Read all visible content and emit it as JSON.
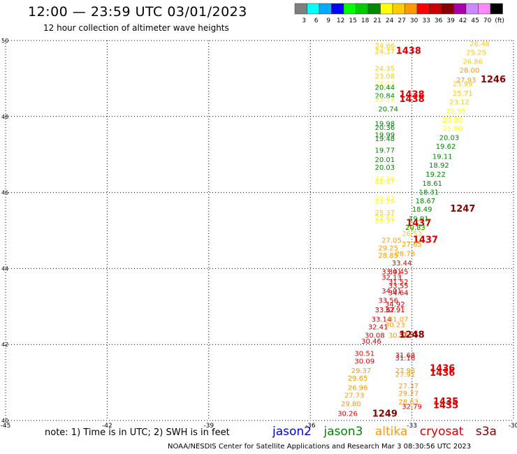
{
  "header": {
    "title": "12:00 — 23:59 UTC 03/01/2023",
    "subtitle": "12 hour collection of altimeter wave heights"
  },
  "color_scale": {
    "colors": [
      "#7f7f7f",
      "#00ffff",
      "#00aaff",
      "#0000ff",
      "#00ff00",
      "#00cc00",
      "#008800",
      "#ffff00",
      "#ffcc00",
      "#ff9900",
      "#ff0000",
      "#cc0000",
      "#880000",
      "#aa00aa",
      "#cc88ff",
      "#ff88ff",
      "#000000"
    ],
    "labels": [
      "3",
      "6",
      "9",
      "12",
      "15",
      "18",
      "21",
      "24",
      "27",
      "30",
      "33",
      "36",
      "39",
      "42",
      "45",
      "70",
      "(ft)"
    ]
  },
  "footer": {
    "note": "note: 1) Time is in UTC; 2) SWH is in feet",
    "missions": [
      {
        "name": "jason2",
        "color": "#0000cc"
      },
      {
        "name": "jason3",
        "color": "#008800"
      },
      {
        "name": "altika",
        "color": "#ff9900"
      },
      {
        "name": "cryosat",
        "color": "#dd0000"
      },
      {
        "name": "s3a",
        "color": "#880000"
      }
    ],
    "credit": "NOAA/NESDIS Center for Satellite Applications and Research   Mar  3 08:30:56 UTC 2023"
  },
  "chart_data": {
    "type": "scatter",
    "xlim": [
      -45,
      -30
    ],
    "ylim": [
      40,
      50
    ],
    "x_ticks": [
      "-45",
      "-42",
      "-39",
      "-36",
      "-33",
      "-30"
    ],
    "y_ticks": [
      "40",
      "42",
      "44",
      "46",
      "48",
      "50"
    ],
    "grid": true,
    "points": [
      {
        "x": -33.8,
        "y": 49.8,
        "t": "24.66",
        "c": "#ffcc00"
      },
      {
        "x": -33.8,
        "y": 49.65,
        "t": "24.37",
        "c": "#ffcc00"
      },
      {
        "x": -33.1,
        "y": 49.65,
        "t": "1438",
        "c": "#dd0000",
        "big": true
      },
      {
        "x": -33.8,
        "y": 49.2,
        "t": "24.35",
        "c": "#ffcc00"
      },
      {
        "x": -33.8,
        "y": 49.0,
        "t": "23.08",
        "c": "#ffcc00"
      },
      {
        "x": -33.8,
        "y": 48.8,
        "t": "22.13",
        "c": "#ffff00"
      },
      {
        "x": -33.8,
        "y": 48.7,
        "t": "20.44",
        "c": "#008800"
      },
      {
        "x": -33.8,
        "y": 48.48,
        "t": "20.84",
        "c": "#008800"
      },
      {
        "x": -33.8,
        "y": 48.38,
        "t": "22.14",
        "c": "#ffff00"
      },
      {
        "x": -33.0,
        "y": 48.5,
        "t": "1438",
        "c": "#dd0000",
        "big": true
      },
      {
        "x": -33.0,
        "y": 48.38,
        "t": "1438",
        "c": "#dd0000",
        "big": true
      },
      {
        "x": -33.7,
        "y": 48.13,
        "t": "20.74",
        "c": "#008800"
      },
      {
        "x": -33.8,
        "y": 47.75,
        "t": "19.98",
        "c": "#008800"
      },
      {
        "x": -33.8,
        "y": 47.65,
        "t": "20.36",
        "c": "#008800"
      },
      {
        "x": -33.8,
        "y": 47.45,
        "t": "19.99",
        "c": "#008800"
      },
      {
        "x": -33.8,
        "y": 47.35,
        "t": "19.48",
        "c": "#008800"
      },
      {
        "x": -33.8,
        "y": 47.05,
        "t": "19.77",
        "c": "#008800"
      },
      {
        "x": -33.8,
        "y": 46.8,
        "t": "20.01",
        "c": "#008800"
      },
      {
        "x": -33.8,
        "y": 46.6,
        "t": "20.03",
        "c": "#008800"
      },
      {
        "x": -33.8,
        "y": 46.3,
        "t": "22.29",
        "c": "#ffff00"
      },
      {
        "x": -33.8,
        "y": 46.23,
        "t": "22.67",
        "c": "#ffff00"
      },
      {
        "x": -33.8,
        "y": 45.78,
        "t": "22.87",
        "c": "#ffff00"
      },
      {
        "x": -33.8,
        "y": 45.7,
        "t": "23.29",
        "c": "#ffff00"
      },
      {
        "x": -33.8,
        "y": 45.4,
        "t": "25.37",
        "c": "#ffcc00"
      },
      {
        "x": -33.8,
        "y": 45.28,
        "t": "22.61",
        "c": "#ffff00"
      },
      {
        "x": -33.8,
        "y": 45.18,
        "t": "22.37",
        "c": "#ffff00"
      },
      {
        "x": -32.8,
        "y": 45.12,
        "t": "1437",
        "c": "#dd0000",
        "big": true
      },
      {
        "x": -32.9,
        "y": 45.0,
        "t": "24.73",
        "c": "#ffff00"
      },
      {
        "x": -33.0,
        "y": 44.85,
        "t": "26.53",
        "c": "#ffcc00"
      },
      {
        "x": -32.6,
        "y": 44.68,
        "t": "1437",
        "c": "#dd0000",
        "big": true
      },
      {
        "x": -33.6,
        "y": 44.68,
        "t": "27.05",
        "c": "#ff9900"
      },
      {
        "x": -33.0,
        "y": 44.58,
        "t": "27.65",
        "c": "#ff9900"
      },
      {
        "x": -33.7,
        "y": 44.48,
        "t": "29.25",
        "c": "#ff9900"
      },
      {
        "x": -33.2,
        "y": 44.33,
        "t": "28.76",
        "c": "#ff9900"
      },
      {
        "x": -33.7,
        "y": 44.28,
        "t": "28.85",
        "c": "#ff9900"
      },
      {
        "x": -33.3,
        "y": 44.08,
        "t": "33.44",
        "c": "#cc0000"
      },
      {
        "x": -33.6,
        "y": 43.85,
        "t": "33.01",
        "c": "#cc0000"
      },
      {
        "x": -33.4,
        "y": 43.85,
        "t": "34.45",
        "c": "#dd0000"
      },
      {
        "x": -33.6,
        "y": 43.7,
        "t": "32.13",
        "c": "#cc0000"
      },
      {
        "x": -33.4,
        "y": 43.58,
        "t": "31.52",
        "c": "#dd0000"
      },
      {
        "x": -33.4,
        "y": 43.48,
        "t": "33.55",
        "c": "#cc0000"
      },
      {
        "x": -33.6,
        "y": 43.35,
        "t": "34.01",
        "c": "#cc0000"
      },
      {
        "x": -33.4,
        "y": 43.3,
        "t": "34.64",
        "c": "#cc0000"
      },
      {
        "x": -33.7,
        "y": 43.1,
        "t": "33.56",
        "c": "#cc0000"
      },
      {
        "x": -33.5,
        "y": 43.0,
        "t": "34.92",
        "c": "#cc0000"
      },
      {
        "x": -33.8,
        "y": 42.85,
        "t": "33.67",
        "c": "#cc0000"
      },
      {
        "x": -33.5,
        "y": 42.85,
        "t": "32.91",
        "c": "#cc0000"
      },
      {
        "x": -33.9,
        "y": 42.6,
        "t": "33.14",
        "c": "#cc0000"
      },
      {
        "x": -33.4,
        "y": 42.6,
        "t": "31.07",
        "c": "#ff9900"
      },
      {
        "x": -34.0,
        "y": 42.4,
        "t": "32.41",
        "c": "#cc0000"
      },
      {
        "x": -33.5,
        "y": 42.45,
        "t": "30.23",
        "c": "#ff9900"
      },
      {
        "x": -34.1,
        "y": 42.18,
        "t": "30.08",
        "c": "#cc0000"
      },
      {
        "x": -33.4,
        "y": 42.18,
        "t": "30.24",
        "c": "#ff9900"
      },
      {
        "x": -33.1,
        "y": 42.2,
        "t": "31.95",
        "c": "#dd0000"
      },
      {
        "x": -33.0,
        "y": 42.18,
        "t": "1248",
        "c": "#880000",
        "big": true
      },
      {
        "x": -34.2,
        "y": 42.02,
        "t": "30.46",
        "c": "#cc0000"
      },
      {
        "x": -34.4,
        "y": 41.7,
        "t": "30.51",
        "c": "#dd0000"
      },
      {
        "x": -33.2,
        "y": 41.65,
        "t": "31.68",
        "c": "#dd0000"
      },
      {
        "x": -33.2,
        "y": 41.58,
        "t": "31.16",
        "c": "#dd0000"
      },
      {
        "x": -34.4,
        "y": 41.5,
        "t": "30.09",
        "c": "#dd0000"
      },
      {
        "x": -34.5,
        "y": 41.25,
        "t": "29.37",
        "c": "#ff9900"
      },
      {
        "x": -33.2,
        "y": 41.25,
        "t": "27.96",
        "c": "#ff9900"
      },
      {
        "x": -33.2,
        "y": 41.15,
        "t": "27.91",
        "c": "#ff9900"
      },
      {
        "x": -32.1,
        "y": 41.3,
        "t": "1436",
        "c": "#dd0000",
        "big": true
      },
      {
        "x": -32.1,
        "y": 41.18,
        "t": "1436",
        "c": "#dd0000",
        "big": true
      },
      {
        "x": -34.6,
        "y": 41.05,
        "t": "29.65",
        "c": "#ff9900"
      },
      {
        "x": -34.6,
        "y": 40.8,
        "t": "26.96",
        "c": "#ff9900"
      },
      {
        "x": -33.1,
        "y": 40.85,
        "t": "27.37",
        "c": "#ff9900"
      },
      {
        "x": -33.1,
        "y": 40.65,
        "t": "29.27",
        "c": "#ff9900"
      },
      {
        "x": -34.7,
        "y": 40.6,
        "t": "27.73",
        "c": "#ff9900"
      },
      {
        "x": -33.1,
        "y": 40.42,
        "t": "28.63",
        "c": "#ff9900"
      },
      {
        "x": -32.0,
        "y": 40.42,
        "t": "1435",
        "c": "#dd0000",
        "big": true
      },
      {
        "x": -32.0,
        "y": 40.32,
        "t": "1435",
        "c": "#dd0000",
        "big": true
      },
      {
        "x": -34.8,
        "y": 40.38,
        "t": "29.80",
        "c": "#ff9900"
      },
      {
        "x": -33.0,
        "y": 40.3,
        "t": "32.79",
        "c": "#dd0000"
      },
      {
        "x": -34.9,
        "y": 40.12,
        "t": "30.26",
        "c": "#dd0000"
      },
      {
        "x": -33.8,
        "y": 40.1,
        "t": "1249",
        "c": "#880000",
        "big": true
      },
      {
        "x": -31.0,
        "y": 49.85,
        "t": "26.48",
        "c": "#ffcc00"
      },
      {
        "x": -31.1,
        "y": 49.62,
        "t": "25.25",
        "c": "#ffcc00"
      },
      {
        "x": -31.2,
        "y": 49.38,
        "t": "26.86",
        "c": "#ffcc00"
      },
      {
        "x": -31.3,
        "y": 49.15,
        "t": "28.00",
        "c": "#ff9900"
      },
      {
        "x": -31.4,
        "y": 48.9,
        "t": "27.93",
        "c": "#ff9900"
      },
      {
        "x": -31.5,
        "y": 48.8,
        "t": "25.99",
        "c": "#ffcc00"
      },
      {
        "x": -30.6,
        "y": 48.9,
        "t": "1246",
        "c": "#880000",
        "big": true
      },
      {
        "x": -31.5,
        "y": 48.55,
        "t": "25.71",
        "c": "#ffcc00"
      },
      {
        "x": -31.6,
        "y": 48.32,
        "t": "23.12",
        "c": "#ffcc00"
      },
      {
        "x": -31.7,
        "y": 48.08,
        "t": "21.95",
        "c": "#ffff00"
      },
      {
        "x": -31.8,
        "y": 47.85,
        "t": "20.80",
        "c": "#ffff00"
      },
      {
        "x": -31.8,
        "y": 47.62,
        "t": "21.90",
        "c": "#ffff00"
      },
      {
        "x": -31.9,
        "y": 47.38,
        "t": "20.03",
        "c": "#008800"
      },
      {
        "x": -32.0,
        "y": 47.15,
        "t": "19.62",
        "c": "#008800"
      },
      {
        "x": -32.1,
        "y": 46.88,
        "t": "19.11",
        "c": "#008800"
      },
      {
        "x": -32.2,
        "y": 46.65,
        "t": "18.92",
        "c": "#008800"
      },
      {
        "x": -32.3,
        "y": 46.42,
        "t": "19.22",
        "c": "#008800"
      },
      {
        "x": -32.4,
        "y": 46.18,
        "t": "18.61",
        "c": "#008800"
      },
      {
        "x": -32.5,
        "y": 45.95,
        "t": "18.31",
        "c": "#008800"
      },
      {
        "x": -32.6,
        "y": 45.72,
        "t": "18.67",
        "c": "#008800"
      },
      {
        "x": -32.7,
        "y": 45.5,
        "t": "18.49",
        "c": "#008800"
      },
      {
        "x": -31.5,
        "y": 45.5,
        "t": "1247",
        "c": "#880000",
        "big": true
      },
      {
        "x": -32.8,
        "y": 45.25,
        "t": "19.91",
        "c": "#008800"
      },
      {
        "x": -32.9,
        "y": 45.02,
        "t": "20.83",
        "c": "#008800"
      }
    ]
  }
}
